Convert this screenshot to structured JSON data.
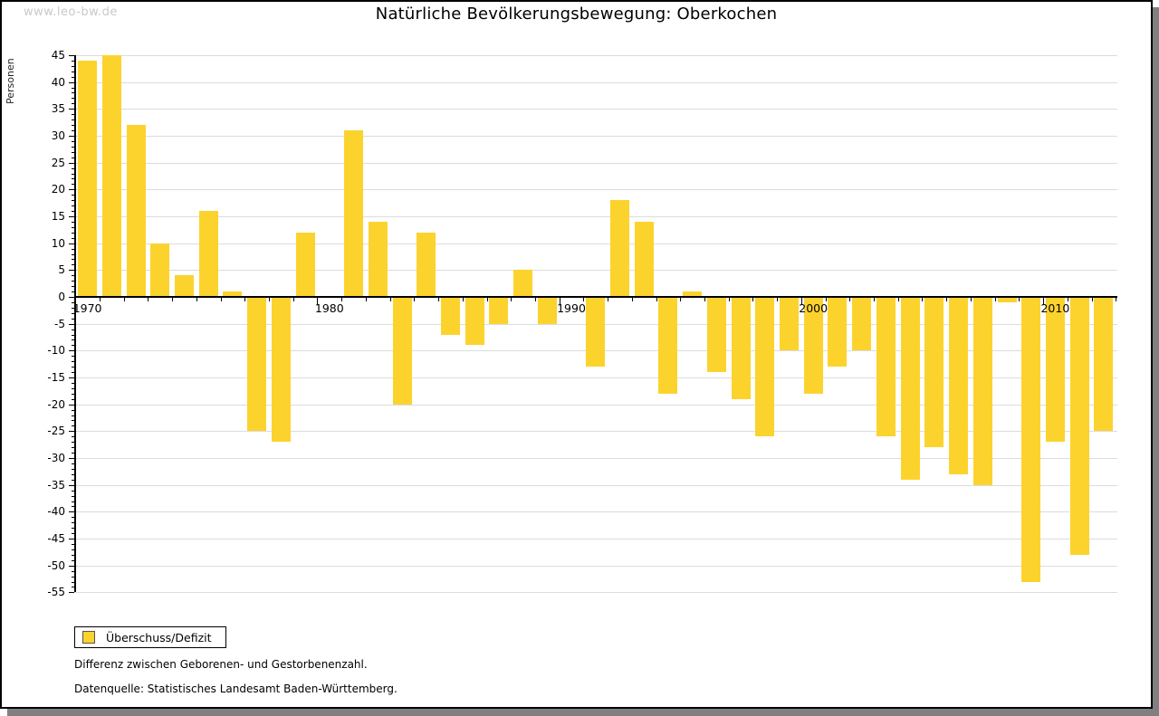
{
  "watermark": "www.leo-bw.de",
  "title": "Natürliche Bevölkerungsbewegung: Oberkochen",
  "y_axis_label": "Personen",
  "legend": {
    "label": "Überschuss/Defizit",
    "swatch_color": "#FCD32D"
  },
  "notes": {
    "line1": "Differenz zwischen Geborenen- und Gestorbenenzahl.",
    "line2": "Datenquelle: Statistisches Landesamt Baden-Württemberg."
  },
  "colors": {
    "bar": "#FCD32D",
    "gridline": "#dcdcdc",
    "axis": "#000000",
    "watermark": "#c9c9c9",
    "shadow": "#808080"
  },
  "chart_data": {
    "type": "bar",
    "title": "Natürliche Bevölkerungsbewegung: Oberkochen",
    "ylabel": "Personen",
    "xlabel": "",
    "ylim": [
      -55,
      45
    ],
    "ytick_step": 5,
    "grid": true,
    "legend_position": "bottom-left",
    "series_name": "Überschuss/Defizit",
    "xticks_labeled": [
      1970,
      1980,
      1990,
      2000,
      2010
    ],
    "x": [
      1970,
      1971,
      1972,
      1973,
      1974,
      1975,
      1976,
      1977,
      1978,
      1979,
      1980,
      1981,
      1982,
      1983,
      1984,
      1985,
      1986,
      1987,
      1988,
      1989,
      1990,
      1991,
      1992,
      1993,
      1994,
      1995,
      1996,
      1997,
      1998,
      1999,
      2000,
      2001,
      2002,
      2003,
      2004,
      2005,
      2006,
      2007,
      2008,
      2009,
      2010,
      2011,
      2012
    ],
    "values": [
      44,
      45,
      32,
      10,
      4,
      16,
      1,
      -25,
      -27,
      12,
      0,
      31,
      14,
      -20,
      12,
      -7,
      -9,
      -5,
      5,
      -5,
      0,
      -13,
      18,
      14,
      -18,
      1,
      -14,
      -19,
      -26,
      -10,
      -18,
      -13,
      -10,
      -26,
      -34,
      -28,
      -33,
      -35,
      -1,
      -53,
      -27,
      -48,
      -25
    ]
  }
}
